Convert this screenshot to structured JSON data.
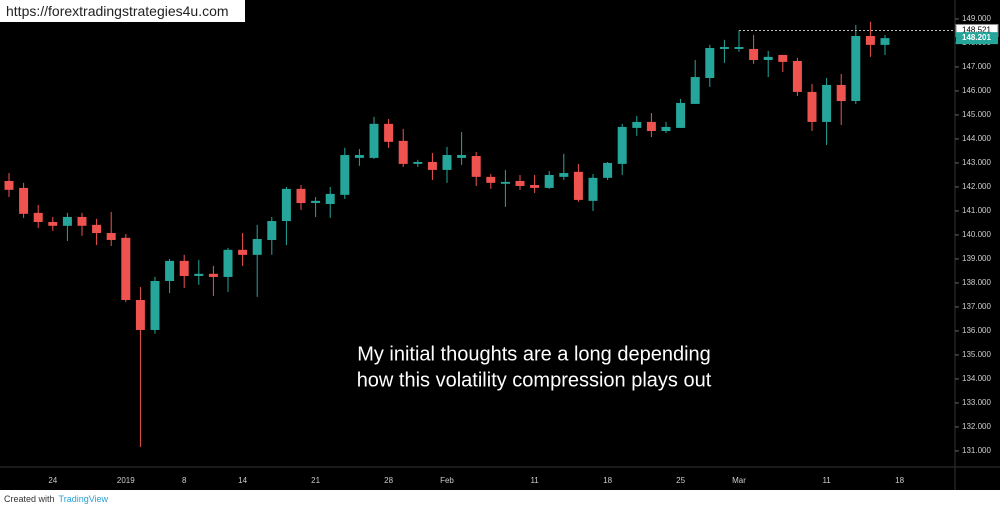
{
  "source_url": "https://forextradingstrategies4u.com",
  "footer": {
    "prefix": "Created with",
    "brand": "TradingView"
  },
  "chart_data": {
    "type": "candlestick",
    "annotation": [
      "My initial thoughts are a long depending",
      "how this volatility compression plays out"
    ],
    "categories": [
      null,
      null,
      null,
      "24",
      null,
      null,
      null,
      null,
      "2019",
      null,
      null,
      null,
      "8",
      null,
      null,
      null,
      "14",
      null,
      null,
      null,
      null,
      "21",
      null,
      null,
      null,
      null,
      "28",
      null,
      null,
      null,
      "Feb",
      null,
      null,
      null,
      null,
      null,
      "11",
      null,
      null,
      null,
      null,
      "18",
      null,
      null,
      null,
      null,
      "25",
      null,
      null,
      null,
      "Mar",
      null,
      null,
      null,
      null,
      null,
      "11",
      null,
      null,
      null,
      null,
      "18"
    ],
    "open": [
      142.25,
      141.96,
      140.92,
      140.54,
      140.38,
      140.75,
      140.42,
      140.08,
      139.88,
      137.29,
      136.04,
      138.08,
      138.92,
      138.29,
      138.38,
      138.25,
      139.38,
      139.17,
      139.79,
      140.58,
      141.92,
      141.33,
      141.29,
      141.67,
      143.21,
      143.21,
      144.63,
      143.92,
      142.96,
      143.04,
      142.71,
      143.21,
      143.29,
      142.42,
      142.13,
      142.25,
      142.08,
      141.96,
      142.42,
      142.63,
      141.42,
      142.38,
      142.96,
      144.46,
      144.71,
      144.33,
      144.46,
      145.46,
      146.54,
      147.75,
      147.75,
      147.75,
      147.29,
      147.5,
      147.25,
      145.96,
      144.71,
      146.25,
      145.58,
      148.29,
      147.92,
      null
    ],
    "high": [
      142.58,
      142.17,
      141.25,
      140.75,
      140.92,
      140.92,
      140.67,
      140.96,
      140.04,
      137.83,
      138.25,
      139.0,
      139.17,
      138.96,
      138.71,
      139.46,
      140.08,
      140.42,
      140.75,
      142.0,
      142.08,
      141.58,
      142.0,
      143.63,
      143.58,
      144.92,
      144.83,
      144.42,
      143.13,
      143.42,
      143.67,
      144.29,
      143.46,
      142.54,
      142.71,
      142.5,
      142.5,
      142.67,
      143.38,
      142.96,
      142.54,
      143.04,
      144.63,
      144.96,
      145.08,
      144.71,
      145.67,
      147.29,
      147.92,
      148.13,
      148.521,
      148.33,
      147.67,
      147.5,
      147.38,
      146.29,
      146.54,
      146.71,
      148.75,
      148.88,
      148.33,
      null
    ],
    "low": [
      141.58,
      140.71,
      140.29,
      140.17,
      139.75,
      139.96,
      139.58,
      139.54,
      137.21,
      131.17,
      135.88,
      137.58,
      137.79,
      137.92,
      137.46,
      137.63,
      138.71,
      137.42,
      139.17,
      139.58,
      141.04,
      140.75,
      140.71,
      141.5,
      142.88,
      143.17,
      143.63,
      142.83,
      142.83,
      142.29,
      142.17,
      142.92,
      142.04,
      141.92,
      141.17,
      141.88,
      141.75,
      141.92,
      142.29,
      141.38,
      141.0,
      142.29,
      142.5,
      144.13,
      144.08,
      144.25,
      144.46,
      145.46,
      146.17,
      147.17,
      147.63,
      147.13,
      146.58,
      146.79,
      145.79,
      144.33,
      143.75,
      144.58,
      145.46,
      147.42,
      147.5,
      null
    ],
    "close": [
      141.88,
      140.88,
      140.54,
      140.38,
      140.75,
      140.38,
      140.08,
      139.79,
      137.29,
      136.04,
      138.08,
      138.92,
      138.29,
      138.38,
      138.25,
      139.38,
      139.17,
      139.83,
      140.58,
      141.92,
      141.33,
      141.42,
      141.71,
      143.33,
      143.33,
      144.63,
      143.88,
      142.96,
      143.04,
      142.71,
      143.33,
      143.33,
      142.42,
      142.17,
      142.21,
      142.04,
      141.96,
      142.5,
      142.58,
      141.46,
      142.38,
      143.0,
      144.5,
      144.71,
      144.33,
      144.5,
      145.5,
      146.58,
      147.79,
      147.83,
      147.83,
      147.29,
      147.42,
      147.21,
      145.96,
      144.71,
      146.25,
      145.58,
      148.29,
      147.92,
      148.201,
      null
    ],
    "up_color": "#26a69a",
    "down_color": "#ef5350",
    "high_line": 148.521,
    "last_price": 148.201,
    "ylim": [
      130.33,
      149.79
    ],
    "yticks": [
      {
        "value": 131,
        "label": "131.000"
      },
      {
        "value": 132,
        "label": "132.000"
      },
      {
        "value": 133,
        "label": "133.000"
      },
      {
        "value": 134,
        "label": "134.000"
      },
      {
        "value": 135,
        "label": "135.000"
      },
      {
        "value": 136,
        "label": "136.000"
      },
      {
        "value": 137,
        "label": "137.000"
      },
      {
        "value": 138,
        "label": "138.000"
      },
      {
        "value": 139,
        "label": "139.000"
      },
      {
        "value": 140,
        "label": "140.000"
      },
      {
        "value": 141,
        "label": "141.000"
      },
      {
        "value": 142,
        "label": "142.000"
      },
      {
        "value": 143,
        "label": "143.000"
      },
      {
        "value": 144,
        "label": "144.000"
      },
      {
        "value": 145,
        "label": "145.000"
      },
      {
        "value": 146,
        "label": "146.000"
      },
      {
        "value": 147,
        "label": "147.000"
      },
      {
        "value": 148,
        "label": "148.000"
      },
      {
        "value": 149,
        "label": "149.000"
      }
    ]
  }
}
